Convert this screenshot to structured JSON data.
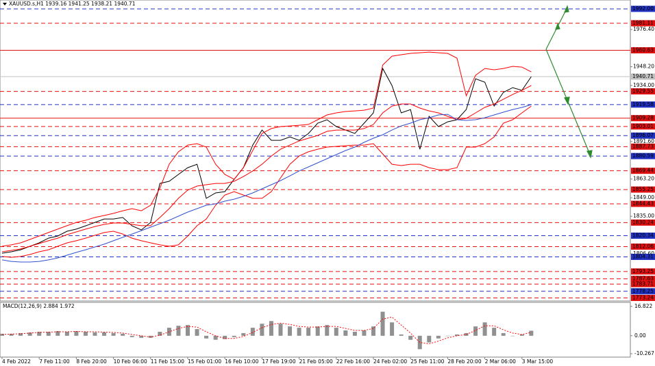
{
  "chart_data": [
    {
      "type": "line",
      "title": "XAUUSD.s,H1  1939.16 1941.25 1938.21 1940.71",
      "categories": [
        "4 Feb 2022",
        null,
        null,
        null,
        "7 Feb 11:00",
        null,
        null,
        null,
        "8 Feb 20:00",
        null,
        null,
        null,
        "10 Feb 06:00",
        null,
        null,
        null,
        "11 Feb 15:00",
        null,
        null,
        null,
        "15 Feb 01:00",
        null,
        null,
        null,
        "16 Feb 10:00",
        null,
        null,
        null,
        "17 Feb 19:00",
        null,
        null,
        null,
        "21 Feb 05:00",
        null,
        null,
        null,
        "22 Feb 16:00",
        null,
        null,
        null,
        "24 Feb 02:00",
        null,
        null,
        null,
        "25 Feb 11:00",
        null,
        null,
        null,
        "28 Feb 20:00",
        null,
        null,
        null,
        "2 Mar 06:00",
        null,
        null,
        null,
        "3 Mar 15:00",
        null
      ],
      "series": [
        {
          "color": "#000000",
          "values": [
            1807.1,
            1808.2,
            1809.7,
            1812.3,
            1814.9,
            1818.5,
            1820.1,
            1823.7,
            1825.3,
            1827.8,
            1830.4,
            1833.0,
            1833.0,
            1834.1,
            1827.8,
            1824.7,
            1830.4,
            1859.9,
            1861.5,
            1866.7,
            1871.8,
            1874.4,
            1848.6,
            1852.7,
            1853.7,
            1863.0,
            1871.8,
            1888.9,
            1900.3,
            1892.5,
            1892.5,
            1895.1,
            1892.5,
            1897.7,
            1905.5,
            1908.1,
            1902.9,
            1900.3,
            1897.7,
            1905.5,
            1913.3,
            1946.9,
            1934.0,
            1913.3,
            1915.8,
            1885.8,
            1910.7,
            1902.9,
            1906.5,
            1908.1,
            1915.8,
            1939.1,
            1936.5,
            1918.4,
            1928.8,
            1932.4,
            1930.3,
            1940.71
          ]
        },
        {
          "color": "#ff0000",
          "values": [
            1812.3,
            1813.4,
            1814.9,
            1817.5,
            1820.1,
            1822.7,
            1825.3,
            1827.9,
            1830.4,
            1832.0,
            1834.1,
            1835.6,
            1837.2,
            1839.2,
            1840.8,
            1839.2,
            1843.4,
            1856.3,
            1874.4,
            1883.8,
            1888.9,
            1890.0,
            1887.4,
            1874.4,
            1866.7,
            1863.0,
            1871.8,
            1884.8,
            1897.7,
            1901.4,
            1902.9,
            1903.4,
            1903.9,
            1904.5,
            1908.1,
            1911.7,
            1913.3,
            1914.3,
            1914.8,
            1915.3,
            1916.9,
            1949.5,
            1956.2,
            1957.3,
            1958.3,
            1958.8,
            1959.3,
            1958.8,
            1958.3,
            1954.7,
            1926.2,
            1941.7,
            1946.9,
            1945.9,
            1946.9,
            1948.5,
            1947.9,
            1944.3
          ]
        },
        {
          "color": "#ff0000",
          "values": [
            1808.2,
            1809.2,
            1810.3,
            1812.3,
            1814.4,
            1816.5,
            1818.5,
            1821.1,
            1823.2,
            1825.3,
            1827.3,
            1828.9,
            1829.9,
            1829.9,
            1828.9,
            1827.9,
            1827.9,
            1834.1,
            1840.8,
            1848.6,
            1854.8,
            1857.9,
            1858.9,
            1859.9,
            1859.9,
            1861.5,
            1865.1,
            1869.3,
            1874.4,
            1880.6,
            1885.8,
            1888.9,
            1892.0,
            1894.1,
            1896.2,
            1899.3,
            1900.3,
            1900.3,
            1900.3,
            1901.4,
            1904.5,
            1913.3,
            1918.4,
            1920.0,
            1920.0,
            1916.9,
            1914.8,
            1913.3,
            1910.7,
            1908.1,
            1909.1,
            1913.3,
            1917.4,
            1920.0,
            1923.6,
            1927.2,
            1930.3,
            1934.0
          ]
        },
        {
          "color": "#ff0000",
          "values": [
            1804.6,
            1804.0,
            1804.6,
            1806.1,
            1808.2,
            1809.7,
            1812.3,
            1814.9,
            1816.5,
            1818.5,
            1820.6,
            1822.7,
            1823.7,
            1821.6,
            1818.5,
            1816.5,
            1814.9,
            1813.4,
            1812.3,
            1813.4,
            1820.1,
            1827.9,
            1833.0,
            1843.4,
            1851.1,
            1853.7,
            1851.1,
            1848.6,
            1848.6,
            1853.7,
            1864.1,
            1874.4,
            1880.6,
            1883.8,
            1885.8,
            1887.4,
            1887.9,
            1888.4,
            1888.9,
            1888.9,
            1890.0,
            1882.2,
            1874.4,
            1873.4,
            1874.4,
            1874.4,
            1871.8,
            1870.3,
            1870.3,
            1871.8,
            1887.4,
            1887.4,
            1890.0,
            1895.1,
            1905.5,
            1908.1,
            1913.3,
            1918.4
          ]
        },
        {
          "color": "#3050d0",
          "values": [
            1802.0,
            1800.9,
            1800.4,
            1800.4,
            1800.9,
            1802.0,
            1803.5,
            1805.6,
            1807.7,
            1809.7,
            1811.8,
            1813.9,
            1816.5,
            1819.1,
            1821.6,
            1824.2,
            1826.8,
            1829.4,
            1832.0,
            1835.1,
            1838.2,
            1840.8,
            1843.4,
            1844.4,
            1846.5,
            1848.0,
            1850.1,
            1852.7,
            1855.8,
            1858.9,
            1862.0,
            1865.6,
            1869.3,
            1872.4,
            1875.5,
            1878.6,
            1881.7,
            1884.8,
            1887.4,
            1891.0,
            1894.1,
            1896.7,
            1900.3,
            1903.4,
            1905.5,
            1908.1,
            1909.6,
            1911.7,
            1912.2,
            1908.1,
            1907.6,
            1908.1,
            1909.6,
            1911.7,
            1913.8,
            1915.8,
            1917.4,
            1919.5
          ]
        }
      ],
      "ylim": [
        1770.9,
        1998.7
      ],
      "yticks": [
        {
          "value": 1976.4,
          "label": "1976.40"
        },
        {
          "value": 1948.2,
          "label": "1948.20"
        },
        {
          "value": 1934,
          "label": "1934.00"
        },
        {
          "value": 1891.6,
          "label": "1891.60"
        },
        {
          "value": 1863.2,
          "label": "1863.20"
        },
        {
          "value": 1849,
          "label": "1849.00"
        },
        {
          "value": 1835,
          "label": "1835.00"
        },
        {
          "value": 1806.6,
          "label": "1806.60"
        }
      ],
      "levels": [
        {
          "value": 1992,
          "label": "1992.00",
          "color": "#2030c0",
          "dashed": true
        },
        {
          "value": 1981.11,
          "label": "1981.11",
          "color": "#e01010",
          "dashed": true
        },
        {
          "value": 1960.63,
          "label": "1960.63",
          "color": "#e01010",
          "dashed": false
        },
        {
          "value": 1940.71,
          "label": "1940.71",
          "color": "#c0c0c0",
          "dashed": false
        },
        {
          "value": 1929.55,
          "label": "1929.55",
          "color": "#e01010",
          "dashed": true
        },
        {
          "value": 1919.58,
          "label": "1919.58",
          "color": "#2030c0",
          "dashed": true
        },
        {
          "value": 1909.28,
          "label": "1909.28",
          "color": "#e01010",
          "dashed": false
        },
        {
          "value": 1903.01,
          "label": "1903.01",
          "color": "#e01010",
          "dashed": true
        },
        {
          "value": 1896.07,
          "label": "1896.07",
          "color": "#2030c0",
          "dashed": true
        },
        {
          "value": 1887.73,
          "label": "1887.73",
          "color": "#e01010",
          "dashed": true
        },
        {
          "value": 1880.59,
          "label": "1880.59",
          "color": "#2030c0",
          "dashed": true
        },
        {
          "value": 1869.44,
          "label": "1869.44",
          "color": "#e01010",
          "dashed": true
        },
        {
          "value": 1855.25,
          "label": "1855.25",
          "color": "#e01010",
          "dashed": true
        },
        {
          "value": 1844.43,
          "label": "1844.43",
          "color": "#e01010",
          "dashed": true
        },
        {
          "value": 1830.24,
          "label": "1830.24",
          "color": "#e01010",
          "dashed": true
        },
        {
          "value": 1820.34,
          "label": "1820.34",
          "color": "#2030c0",
          "dashed": true
        },
        {
          "value": 1812.06,
          "label": "1812.06",
          "color": "#e01010",
          "dashed": true
        },
        {
          "value": 1804.31,
          "label": "1804.31",
          "color": "#2030c0",
          "dashed": true
        },
        {
          "value": 1793.25,
          "label": "1793.25",
          "color": "#e01010",
          "dashed": true
        },
        {
          "value": 1787.63,
          "label": "1787.63",
          "color": "#e01010",
          "dashed": true
        },
        {
          "value": 1783.71,
          "label": "1783.71",
          "color": "#e01010",
          "dashed": true
        },
        {
          "value": 1778.25,
          "label": "1778.25",
          "color": "#2030c0",
          "dashed": true
        },
        {
          "value": 1773.24,
          "label": "1773.24",
          "color": "#e01010",
          "dashed": true
        }
      ]
    },
    {
      "type": "bar",
      "title": "MACD(12,26,9) 2.884 1.972",
      "series": [
        {
          "type": "bar",
          "color": "#909090",
          "values": [
            1.15,
            1.15,
            1.53,
            1.91,
            2.29,
            2.29,
            2.68,
            2.29,
            2.68,
            2.29,
            1.91,
            1.91,
            1.53,
            1.15,
            -0.76,
            -1.15,
            -1.15,
            2.29,
            4.59,
            5.73,
            6.12,
            3.82,
            -1.53,
            -2.29,
            -1.91,
            -0.76,
            1.53,
            4.59,
            6.88,
            8.41,
            6.88,
            5.35,
            4.59,
            4.59,
            5.35,
            6.12,
            4.59,
            3.06,
            2.29,
            3.06,
            5.35,
            13.76,
            7.65,
            0.76,
            -2.29,
            -7.65,
            -3.82,
            -1.53,
            0,
            0.76,
            1.53,
            5.35,
            7.65,
            4.59,
            1.53,
            0,
            0.76,
            2.884
          ]
        },
        {
          "type": "line",
          "color": "#ff0000",
          "values": [
            0.76,
            0.96,
            1.15,
            1.53,
            1.91,
            2.1,
            2.29,
            2.29,
            2.48,
            2.29,
            2.29,
            2.1,
            1.91,
            1.53,
            0.76,
            0,
            -0.76,
            0.38,
            2.29,
            4.2,
            5.35,
            4.97,
            2.29,
            0,
            -1.53,
            -1.53,
            -0.38,
            1.91,
            4.59,
            6.5,
            7.26,
            6.5,
            5.35,
            4.97,
            4.97,
            5.35,
            5.35,
            4.2,
            3.06,
            3.06,
            4.2,
            9.56,
            10.7,
            6.12,
            1.53,
            -3.82,
            -4.59,
            -3.06,
            -1.15,
            0,
            0.76,
            3.06,
            5.73,
            5.73,
            3.44,
            1.53,
            0.76,
            1.972
          ]
        }
      ],
      "ylim": [
        -11.8,
        18.7
      ],
      "yticks": [
        16.822,
        {
          "value": 0,
          "label": "0.00"
        },
        -10.267
      ]
    }
  ]
}
